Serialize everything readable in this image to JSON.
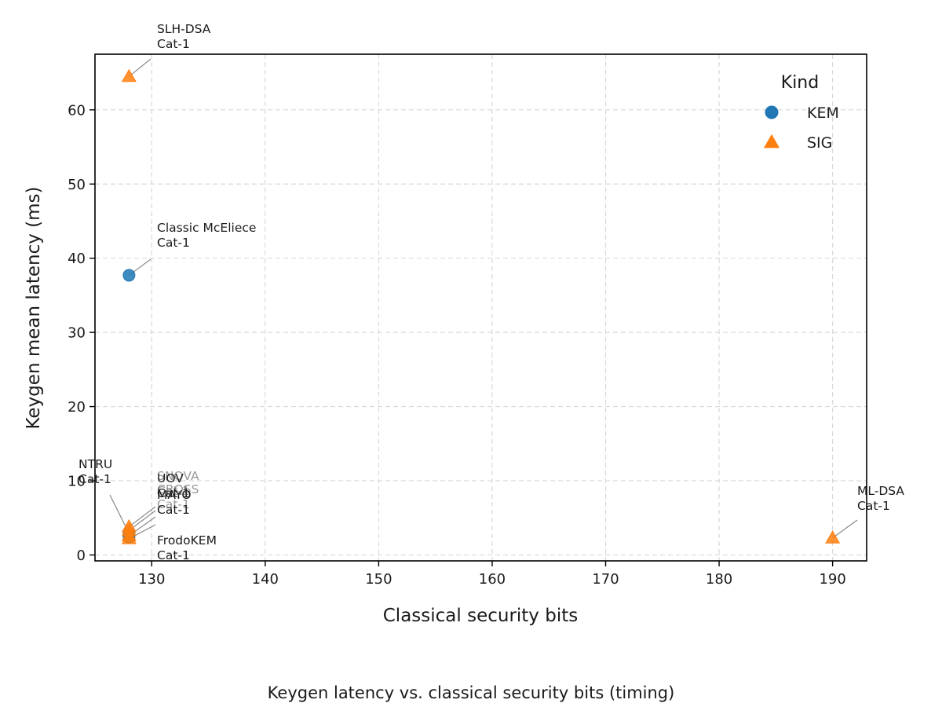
{
  "chart_data": {
    "type": "scatter",
    "caption": "Keygen latency vs. classical security bits (timing)",
    "xlabel": "Classical security bits",
    "ylabel": "Keygen mean latency (ms)",
    "xlim": [
      125,
      193
    ],
    "ylim": [
      -0.8,
      67.5
    ],
    "x_ticks": [
      130,
      140,
      150,
      160,
      170,
      180,
      190
    ],
    "y_ticks": [
      0,
      10,
      20,
      30,
      40,
      50,
      60
    ],
    "grid": true,
    "legend": {
      "title": "Kind",
      "placement": "top-right",
      "entries": [
        {
          "label": "KEM",
          "marker": "circle",
          "color": "#1f77b4"
        },
        {
          "label": "SIG",
          "marker": "triangle",
          "color": "#ff7f0e"
        }
      ]
    },
    "series": [
      {
        "name": "KEM",
        "marker": "circle",
        "color": "#1f77b4",
        "points": [
          {
            "x": 128,
            "y": 37.7,
            "label": [
              "Classic McEliece",
              "Cat-1"
            ]
          },
          {
            "x": 128,
            "y": 2.9,
            "label": [
              "NTRU",
              "Cat-1"
            ]
          },
          {
            "x": 128,
            "y": 2.4,
            "label": [
              "FrodoKEM",
              "Cat-1"
            ]
          }
        ]
      },
      {
        "name": "SIG",
        "marker": "triangle",
        "color": "#ff7f0e",
        "points": [
          {
            "x": 128,
            "y": 64.5,
            "label": [
              "SLH-DSA",
              "Cat-1"
            ]
          },
          {
            "x": 190,
            "y": 2.3,
            "label": [
              "ML-DSA",
              "Cat-1"
            ]
          },
          {
            "x": 128,
            "y": 3.8,
            "label": [
              "UOV",
              "Cat-1"
            ]
          },
          {
            "x": 128,
            "y": 3.3,
            "label": [
              "SNOVA",
              "Cat-1"
            ]
          },
          {
            "x": 128,
            "y": 2.6,
            "label": [
              "CROSS",
              "Cat-1"
            ]
          },
          {
            "x": 128,
            "y": 2.2,
            "label": [
              "MAYO",
              "Cat-1"
            ]
          }
        ]
      }
    ]
  }
}
